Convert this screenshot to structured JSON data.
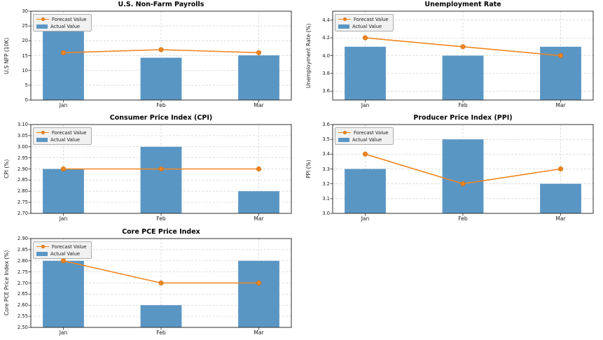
{
  "figure": {
    "background": "#ffffff"
  },
  "colors": {
    "bar": "#5a96c4",
    "line": "#f08620",
    "marker_edge": "#d2700e",
    "grid": "#d4d4d4",
    "spine": "#2f2f2f",
    "tick_label": "#1a1a1a",
    "legend_bg": "#f1f1f1",
    "legend_border": "#adadad"
  },
  "legend": {
    "forecast_label": "Forecast Value",
    "actual_label": "Actual Value"
  },
  "chart_data": [
    {
      "type": "bar",
      "title": "U.S. Non-Farm Payrolls",
      "ylabel": "U.S NFP (10K)",
      "xlabel": "",
      "categories": [
        "Jan",
        "Feb",
        "Mar"
      ],
      "ylim": [
        0,
        30
      ],
      "yticks": [
        0,
        5,
        10,
        15,
        20,
        25,
        30
      ],
      "ytick_labels": [
        "0",
        "5",
        "10",
        "15",
        "20",
        "25",
        "30"
      ],
      "grid": true,
      "legend_position": "upper left",
      "series": [
        {
          "name": "Forecast Value",
          "type": "line",
          "values": [
            16,
            17,
            16
          ]
        },
        {
          "name": "Actual Value",
          "type": "bar",
          "values": [
            23.7,
            14.3,
            15.1
          ]
        }
      ]
    },
    {
      "type": "bar",
      "title": "Unemployment Rate",
      "ylabel": "Unemployment Rate (%)",
      "xlabel": "",
      "categories": [
        "Jan",
        "Feb",
        "Mar"
      ],
      "ylim": [
        3.5,
        4.5
      ],
      "yticks": [
        3.6,
        3.8,
        4.0,
        4.2,
        4.4
      ],
      "ytick_labels": [
        "3.6",
        "3.8",
        "4.0",
        "4.2",
        "4.4"
      ],
      "grid": true,
      "legend_position": "upper left",
      "series": [
        {
          "name": "Forecast Value",
          "type": "line",
          "values": [
            4.2,
            4.1,
            4.0
          ]
        },
        {
          "name": "Actual Value",
          "type": "bar",
          "values": [
            4.1,
            4.0,
            4.1
          ]
        }
      ]
    },
    {
      "type": "bar",
      "title": "Consumer Price Index (CPI)",
      "ylabel": "CPI (%)",
      "xlabel": "",
      "categories": [
        "Jan",
        "Feb",
        "Mar"
      ],
      "ylim": [
        2.7,
        3.1
      ],
      "yticks": [
        2.7,
        2.75,
        2.8,
        2.85,
        2.9,
        2.95,
        3.0,
        3.05,
        3.1
      ],
      "ytick_labels": [
        "2.70",
        "2.75",
        "2.80",
        "2.85",
        "2.90",
        "2.95",
        "3.00",
        "3.05",
        "3.10"
      ],
      "grid": true,
      "legend_position": "upper left",
      "series": [
        {
          "name": "Forecast Value",
          "type": "line",
          "values": [
            2.9,
            2.9,
            2.9
          ]
        },
        {
          "name": "Actual Value",
          "type": "bar",
          "values": [
            2.9,
            3.0,
            2.8
          ]
        }
      ]
    },
    {
      "type": "bar",
      "title": "Producer Price Index (PPI)",
      "ylabel": "PPI (%)",
      "xlabel": "",
      "categories": [
        "Jan",
        "Feb",
        "Mar"
      ],
      "ylim": [
        3.0,
        3.6
      ],
      "yticks": [
        3.0,
        3.1,
        3.2,
        3.3,
        3.4,
        3.5,
        3.6
      ],
      "ytick_labels": [
        "3.0",
        "3.1",
        "3.2",
        "3.3",
        "3.4",
        "3.5",
        "3.6"
      ],
      "grid": true,
      "legend_position": "upper left",
      "series": [
        {
          "name": "Forecast Value",
          "type": "line",
          "values": [
            3.4,
            3.2,
            3.3
          ]
        },
        {
          "name": "Actual Value",
          "type": "bar",
          "values": [
            3.3,
            3.5,
            3.2
          ]
        }
      ]
    },
    {
      "type": "bar",
      "title": "Core PCE Price Index",
      "ylabel": "Core PCE Price Index (%)",
      "xlabel": "",
      "categories": [
        "Jan",
        "Feb",
        "Mar"
      ],
      "ylim": [
        2.5,
        2.9
      ],
      "yticks": [
        2.5,
        2.55,
        2.6,
        2.65,
        2.7,
        2.75,
        2.8,
        2.85,
        2.9
      ],
      "ytick_labels": [
        "2.50",
        "2.55",
        "2.60",
        "2.65",
        "2.70",
        "2.75",
        "2.80",
        "2.85",
        "2.90"
      ],
      "grid": true,
      "legend_position": "upper left",
      "series": [
        {
          "name": "Forecast Value",
          "type": "line",
          "values": [
            2.8,
            2.7,
            2.7
          ]
        },
        {
          "name": "Actual Value",
          "type": "bar",
          "values": [
            2.8,
            2.6,
            2.8
          ]
        }
      ]
    }
  ]
}
